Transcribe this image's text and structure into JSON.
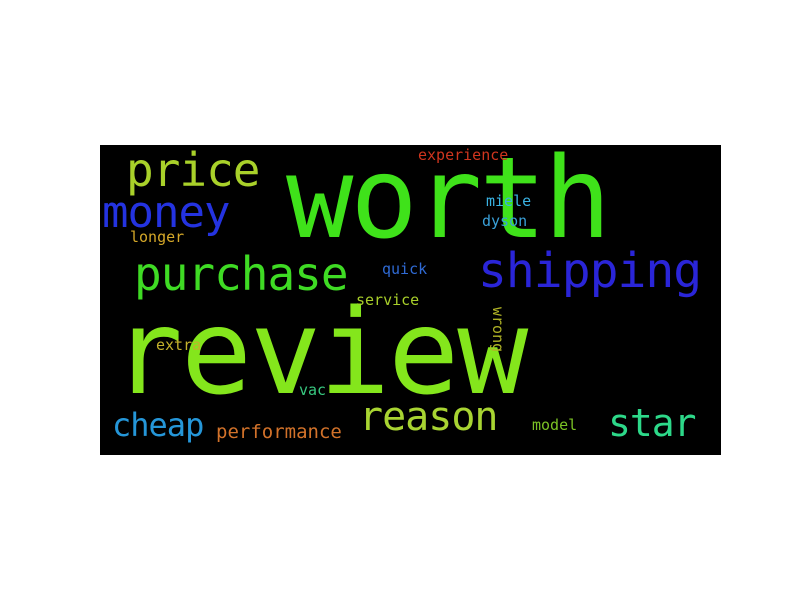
{
  "wordcloud": {
    "words": [
      {
        "text": "review",
        "color": "#84e61c"
      },
      {
        "text": "worth",
        "color": "#3fe21a"
      },
      {
        "text": "shipping",
        "color": "#2a25d8"
      },
      {
        "text": "purchase",
        "color": "#3fdb24"
      },
      {
        "text": "price",
        "color": "#a9d12a"
      },
      {
        "text": "money",
        "color": "#2433e0"
      },
      {
        "text": "reason",
        "color": "#a8d432"
      },
      {
        "text": "star",
        "color": "#2dd889"
      },
      {
        "text": "cheap",
        "color": "#2596d8"
      },
      {
        "text": "performance",
        "color": "#d2722a"
      },
      {
        "text": "experience",
        "color": "#d0351e"
      },
      {
        "text": "miele",
        "color": "#3ab3e3"
      },
      {
        "text": "dyson",
        "color": "#3aa0d8"
      },
      {
        "text": "longer",
        "color": "#d5a828"
      },
      {
        "text": "quick",
        "color": "#2f6ad4"
      },
      {
        "text": "service",
        "color": "#a8cf2a"
      },
      {
        "text": "wrong",
        "color": "#b0b326"
      },
      {
        "text": "extra",
        "color": "#c4b12c"
      },
      {
        "text": "vac",
        "color": "#38c880"
      },
      {
        "text": "model",
        "color": "#7bc225"
      }
    ]
  }
}
